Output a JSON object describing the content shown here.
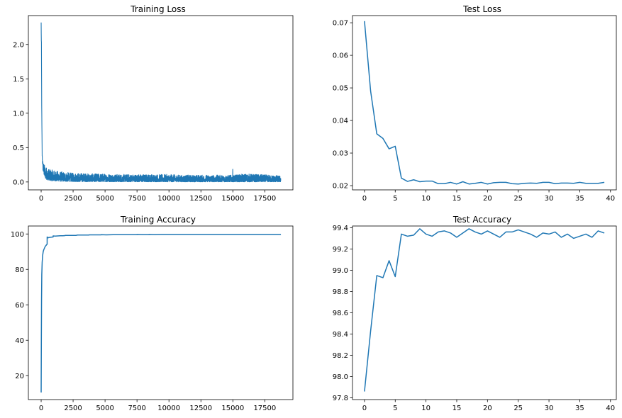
{
  "chart_data": [
    {
      "type": "line",
      "title": "Training Loss",
      "xlabel": "",
      "ylabel": "",
      "xlim": [
        -1000,
        19700
      ],
      "ylim": [
        -0.115,
        2.42
      ],
      "xticks": [
        0,
        2500,
        5000,
        7500,
        10000,
        12500,
        15000,
        17500
      ],
      "yticks": [
        0.0,
        0.5,
        1.0,
        1.5,
        2.0
      ],
      "xtick_labels": [
        "0",
        "2500",
        "5000",
        "7500",
        "10000",
        "12500",
        "15000",
        "17500"
      ],
      "ytick_labels": [
        "0.0",
        "0.5",
        "1.0",
        "1.5",
        "2.0"
      ],
      "grid": false,
      "color": "#1f77b4",
      "series": [
        {
          "noisy": true,
          "x": [
            0,
            20,
            50,
            80,
            100,
            150,
            200,
            300,
            400,
            500,
            700,
            1000,
            1500,
            2000,
            2500,
            3000,
            4000,
            5000,
            6000,
            7000,
            8000,
            9000,
            10000,
            11000,
            12000,
            13000,
            14000,
            14950,
            15000,
            15050,
            16000,
            17000,
            18000,
            18750
          ],
          "y_low": [
            2.32,
            1.8,
            0.9,
            0.35,
            0.3,
            0.15,
            0.12,
            0.06,
            0.04,
            0.03,
            0.02,
            0.015,
            0.01,
            0.008,
            0.006,
            0.005,
            0.004,
            0.004,
            0.003,
            0.003,
            0.003,
            0.003,
            0.002,
            0.002,
            0.002,
            0.002,
            0.002,
            0.002,
            0.002,
            0.002,
            0.002,
            0.002,
            0.002,
            0.002
          ],
          "y_high": [
            2.32,
            2.1,
            1.02,
            0.43,
            0.35,
            0.3,
            0.27,
            0.24,
            0.22,
            0.2,
            0.18,
            0.17,
            0.15,
            0.14,
            0.13,
            0.13,
            0.12,
            0.12,
            0.11,
            0.11,
            0.11,
            0.11,
            0.11,
            0.1,
            0.1,
            0.1,
            0.1,
            0.1,
            0.2,
            0.1,
            0.12,
            0.11,
            0.1,
            0.09
          ]
        }
      ]
    },
    {
      "type": "line",
      "title": "Test Loss",
      "xlabel": "",
      "ylabel": "",
      "xlim": [
        -1.95,
        40.95
      ],
      "ylim": [
        0.0187,
        0.0722
      ],
      "xticks": [
        0,
        5,
        10,
        15,
        20,
        25,
        30,
        35,
        40
      ],
      "yticks": [
        0.02,
        0.03,
        0.04,
        0.05,
        0.06,
        0.07
      ],
      "xtick_labels": [
        "0",
        "5",
        "10",
        "15",
        "20",
        "25",
        "30",
        "35",
        "40"
      ],
      "ytick_labels": [
        "0.02",
        "0.03",
        "0.04",
        "0.05",
        "0.06",
        "0.07"
      ],
      "grid": false,
      "color": "#1f77b4",
      "series": [
        {
          "x": [
            0,
            1,
            2,
            3,
            4,
            5,
            6,
            7,
            8,
            9,
            10,
            11,
            12,
            13,
            14,
            15,
            16,
            17,
            18,
            19,
            20,
            21,
            22,
            23,
            24,
            25,
            26,
            27,
            28,
            29,
            30,
            31,
            32,
            33,
            34,
            35,
            36,
            37,
            38,
            39
          ],
          "y": [
            0.0705,
            0.049,
            0.0359,
            0.0345,
            0.0313,
            0.0321,
            0.0223,
            0.0213,
            0.0218,
            0.0212,
            0.0214,
            0.0214,
            0.0206,
            0.0206,
            0.021,
            0.0205,
            0.0212,
            0.0205,
            0.0207,
            0.021,
            0.0205,
            0.0209,
            0.021,
            0.021,
            0.0206,
            0.0205,
            0.0207,
            0.0208,
            0.0207,
            0.021,
            0.021,
            0.0206,
            0.0208,
            0.0208,
            0.0207,
            0.021,
            0.0207,
            0.0207,
            0.0207,
            0.021
          ]
        }
      ]
    },
    {
      "type": "line",
      "title": "Training Accuracy",
      "xlabel": "",
      "ylabel": "",
      "xlim": [
        -1000,
        19700
      ],
      "ylim": [
        6.5,
        104.5
      ],
      "xticks": [
        0,
        2500,
        5000,
        7500,
        10000,
        12500,
        15000,
        17500
      ],
      "yticks": [
        20,
        40,
        60,
        80,
        100
      ],
      "xtick_labels": [
        "0",
        "2500",
        "5000",
        "7500",
        "10000",
        "12500",
        "15000",
        "17500"
      ],
      "ytick_labels": [
        "20",
        "40",
        "60",
        "80",
        "100"
      ],
      "grid": false,
      "color": "#1f77b4",
      "series": [
        {
          "x": [
            0,
            15,
            30,
            50,
            80,
            120,
            160,
            200,
            260,
            320,
            380,
            430,
            469,
            470,
            520,
            600,
            700,
            800,
            938,
            939,
            1100,
            1300,
            1500,
            1700,
            1876,
            1877,
            2100,
            2400,
            2700,
            2814,
            2815,
            3200,
            3600,
            3752,
            3753,
            4200,
            4690,
            4691,
            5100,
            5628,
            5629,
            6100,
            6566,
            6567,
            7000,
            7504,
            7505,
            8000,
            8200,
            8380,
            8442,
            8443,
            8900,
            9380,
            9381,
            9800,
            10318,
            10319,
            10800,
            11256,
            11257,
            11700,
            12194,
            12195,
            12700,
            13132,
            13133,
            13600,
            14070,
            14071,
            14500,
            15008,
            15009,
            15500,
            15946,
            15947,
            16400,
            16884,
            16885,
            17300,
            17822,
            17823,
            18300,
            18760
          ],
          "y": [
            10.5,
            40,
            62,
            77,
            84,
            88,
            90,
            91,
            92,
            93,
            93.5,
            94,
            94.2,
            98.3,
            97.8,
            98.0,
            98.1,
            98.2,
            98.3,
            98.9,
            98.8,
            98.9,
            99.0,
            99.0,
            99.1,
            99.2,
            99.2,
            99.2,
            99.2,
            99.3,
            99.4,
            99.4,
            99.4,
            99.4,
            99.5,
            99.5,
            99.5,
            99.6,
            99.5,
            99.6,
            99.6,
            99.6,
            99.6,
            99.6,
            99.6,
            99.6,
            99.7,
            99.6,
            99.6,
            99.6,
            99.6,
            99.7,
            99.6,
            99.7,
            99.7,
            99.7,
            99.7,
            99.7,
            99.7,
            99.7,
            99.7,
            99.7,
            99.7,
            99.7,
            99.7,
            99.7,
            99.7,
            99.7,
            99.7,
            99.7,
            99.7,
            99.7,
            99.7,
            99.7,
            99.7,
            99.7,
            99.7,
            99.7,
            99.7,
            99.7,
            99.7,
            99.7,
            99.7,
            99.7
          ]
        }
      ]
    },
    {
      "type": "line",
      "title": "Test Accuracy",
      "xlabel": "",
      "ylabel": "",
      "xlim": [
        -1.95,
        40.95
      ],
      "ylim": [
        97.784,
        99.416
      ],
      "xticks": [
        0,
        5,
        10,
        15,
        20,
        25,
        30,
        35,
        40
      ],
      "yticks": [
        97.8,
        98.0,
        98.2,
        98.4,
        98.6,
        98.8,
        99.0,
        99.2,
        99.4
      ],
      "xtick_labels": [
        "0",
        "5",
        "10",
        "15",
        "20",
        "25",
        "30",
        "35",
        "40"
      ],
      "ytick_labels": [
        "97.8",
        "98.0",
        "98.2",
        "98.4",
        "98.6",
        "98.8",
        "99.0",
        "99.2",
        "99.4"
      ],
      "grid": false,
      "color": "#1f77b4",
      "series": [
        {
          "x": [
            0,
            1,
            2,
            3,
            4,
            5,
            6,
            7,
            8,
            9,
            10,
            11,
            12,
            13,
            14,
            15,
            16,
            17,
            18,
            19,
            20,
            21,
            22,
            23,
            24,
            25,
            26,
            27,
            28,
            29,
            30,
            31,
            32,
            33,
            34,
            35,
            36,
            37,
            38,
            39
          ],
          "y": [
            97.86,
            98.43,
            98.95,
            98.93,
            99.09,
            98.94,
            99.34,
            99.32,
            99.33,
            99.39,
            99.34,
            99.32,
            99.36,
            99.37,
            99.35,
            99.31,
            99.35,
            99.39,
            99.36,
            99.34,
            99.37,
            99.34,
            99.31,
            99.36,
            99.36,
            99.38,
            99.36,
            99.34,
            99.31,
            99.35,
            99.34,
            99.36,
            99.31,
            99.34,
            99.3,
            99.32,
            99.34,
            99.31,
            99.37,
            99.35
          ]
        }
      ]
    }
  ]
}
